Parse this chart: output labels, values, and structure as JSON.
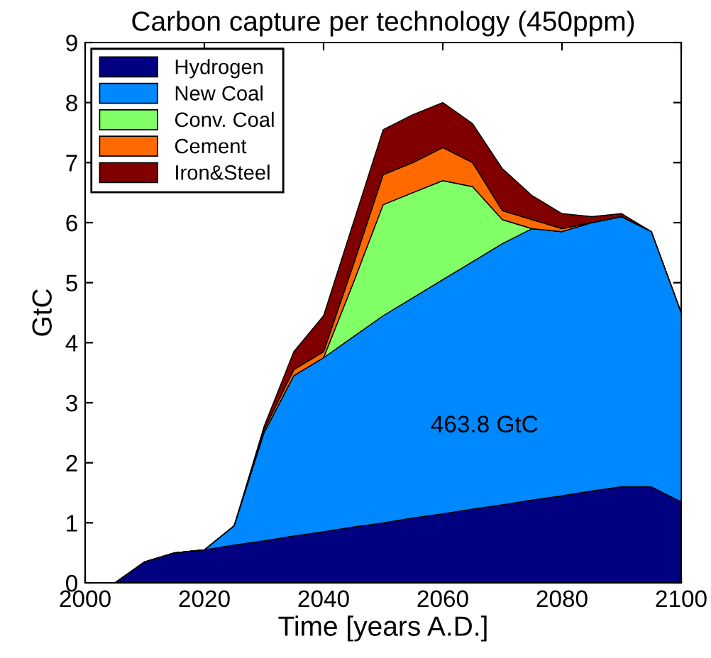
{
  "chart_data": {
    "type": "area",
    "stacked": true,
    "title": "Carbon capture per technology (450ppm)",
    "xlabel": "Time [years A.D.]",
    "ylabel": "GtC",
    "x": [
      2000,
      2005,
      2010,
      2015,
      2020,
      2025,
      2030,
      2035,
      2040,
      2045,
      2050,
      2055,
      2060,
      2065,
      2070,
      2075,
      2080,
      2085,
      2090,
      2095,
      2100
    ],
    "series": [
      {
        "name": "Hydrogen",
        "color": "#000080",
        "values": [
          0,
          0,
          0.35,
          0.5,
          0.55,
          0.63,
          0.7,
          0.78,
          0.85,
          0.93,
          1.0,
          1.08,
          1.15,
          1.23,
          1.3,
          1.38,
          1.45,
          1.53,
          1.6,
          1.6,
          1.35
        ]
      },
      {
        "name": "New Coal",
        "color": "#0088ff",
        "values": [
          0,
          0,
          0,
          0,
          0,
          0.32,
          1.8,
          2.67,
          2.9,
          3.17,
          3.45,
          3.67,
          3.9,
          4.12,
          4.35,
          4.52,
          4.4,
          4.47,
          4.5,
          4.25,
          3.15
        ]
      },
      {
        "name": "Conv. Coal",
        "color": "#80ff66",
        "values": [
          0,
          0,
          0,
          0,
          0,
          0,
          0,
          0,
          0,
          0.9,
          1.85,
          1.75,
          1.65,
          1.25,
          0.4,
          0,
          0,
          0,
          0,
          0,
          0
        ]
      },
      {
        "name": "Cement",
        "color": "#ff6a00",
        "values": [
          0,
          0,
          0,
          0,
          0,
          0,
          0.05,
          0.1,
          0.1,
          0.3,
          0.5,
          0.5,
          0.55,
          0.4,
          0.15,
          0.15,
          0.05,
          0,
          0,
          0,
          0
        ]
      },
      {
        "name": "Iron&Steel",
        "color": "#800000",
        "values": [
          0,
          0,
          0,
          0,
          0,
          0,
          0.05,
          0.3,
          0.6,
          0.7,
          0.75,
          0.8,
          0.75,
          0.65,
          0.7,
          0.4,
          0.25,
          0.1,
          0.05,
          0,
          0
        ]
      }
    ],
    "annotations": [
      "463.8 GtC"
    ],
    "xlim": [
      2000,
      2100
    ],
    "xticks": [
      2000,
      2020,
      2040,
      2060,
      2080,
      2100
    ],
    "ylim": [
      0,
      9
    ],
    "yticks": [
      0,
      1,
      2,
      3,
      4,
      5,
      6,
      7,
      8,
      9
    ],
    "grid": false,
    "legend": "top left"
  }
}
